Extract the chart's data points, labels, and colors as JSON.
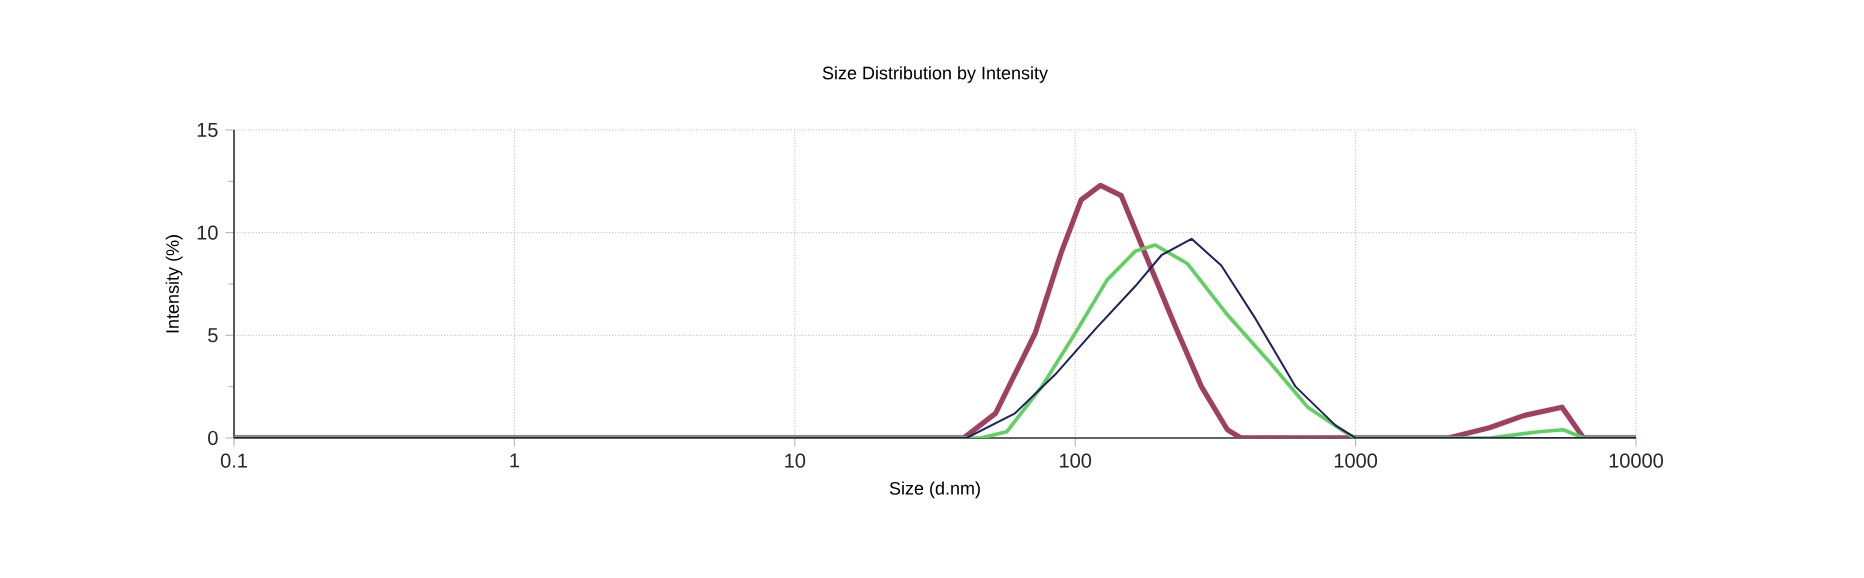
{
  "chart_data": {
    "type": "line",
    "title": "Size Distribution by Intensity",
    "xlabel": "Size (d.nm)",
    "ylabel": "Intensity (%)",
    "log": "x",
    "xlim": [
      0.1,
      10000
    ],
    "xticks": [
      0.1,
      1,
      10,
      100,
      1000,
      10000
    ],
    "ylim": [
      0,
      15
    ],
    "yticks": [
      0,
      5,
      10,
      15
    ],
    "grid": true,
    "marker": "none",
    "line_style": "solid",
    "series": [
      {
        "color": "#a04060",
        "x": [
          0.1,
          40,
          52,
          72,
          89,
          105,
          123,
          146,
          181,
          228,
          282,
          349,
          390,
          2140,
          3000,
          4000,
          5450,
          6500,
          10000
        ],
        "values": [
          0,
          0,
          1.2,
          5.1,
          9.0,
          11.6,
          12.3,
          11.8,
          8.7,
          5.4,
          2.5,
          0.4,
          0,
          0,
          0.5,
          1.1,
          1.5,
          0,
          0
        ]
      },
      {
        "color": "#60d060",
        "x": [
          0.1,
          46,
          57,
          76,
          100,
          130,
          164,
          193,
          251,
          349,
          486,
          675,
          936,
          1000,
          3000,
          4500,
          5500,
          6500,
          10000
        ],
        "values": [
          0,
          0,
          0.3,
          2.5,
          5.1,
          7.7,
          9.1,
          9.4,
          8.5,
          6.0,
          3.8,
          1.5,
          0.2,
          0,
          0,
          0.3,
          0.4,
          0,
          0
        ]
      },
      {
        "color": "#202060",
        "x": [
          0.1,
          41,
          61,
          85,
          118,
          164,
          203,
          260,
          332,
          440,
          611,
          849,
          1000,
          10000
        ],
        "values": [
          0,
          0,
          1.2,
          3.1,
          5.3,
          7.4,
          8.9,
          9.7,
          8.4,
          5.8,
          2.5,
          0.6,
          0,
          0
        ]
      }
    ]
  }
}
